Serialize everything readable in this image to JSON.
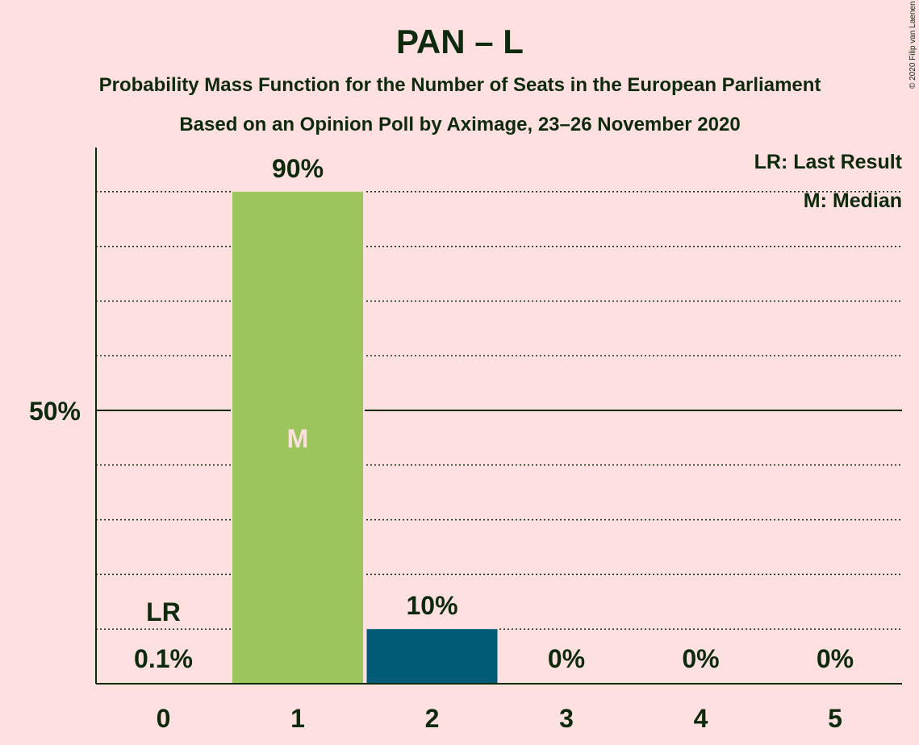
{
  "title": "PAN – L",
  "subtitle": "Probability Mass Function for the Number of Seats in the European Parliament",
  "subtitle2": "Based on an Opinion Poll by Aximage, 23–26 November 2020",
  "copyright": "© 2020 Filip van Laenen",
  "legend": {
    "last_result": "LR: Last Result",
    "median": "M: Median"
  },
  "colors": {
    "background": "#ffe0e0",
    "text": "#0d2a0d",
    "median_bar": "#9cc55e",
    "bar": "#005b76",
    "median_label": "#ffe0e0"
  },
  "chart_data": {
    "type": "bar",
    "categories": [
      "0",
      "1",
      "2",
      "3",
      "4",
      "5"
    ],
    "values": [
      0.1,
      90,
      10,
      0,
      0,
      0
    ],
    "value_labels": [
      "0.1%",
      "90%",
      "10%",
      "0%",
      "0%",
      "0%"
    ],
    "ylim": [
      0,
      100
    ],
    "y_ticks": [
      {
        "value": 50,
        "label": "50%"
      }
    ],
    "minor_gridlines": [
      10,
      20,
      30,
      40,
      60,
      70,
      80,
      90
    ],
    "grid": true,
    "median_index": 1,
    "median_marker": "M",
    "last_result_index": 0,
    "last_result_marker": "LR",
    "legend_placement": "top-right"
  }
}
